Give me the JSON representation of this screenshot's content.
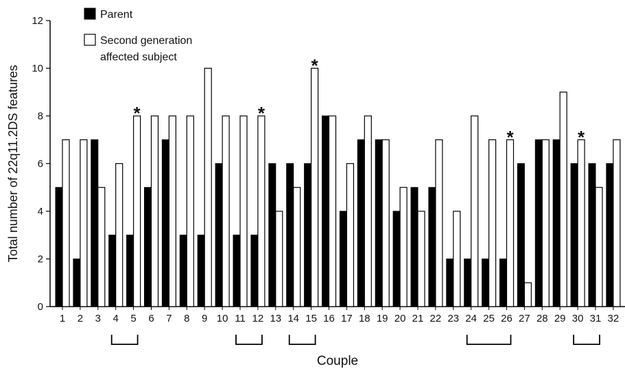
{
  "chart_data": {
    "type": "bar",
    "ylabel": "Total number of 22q11.2DS features",
    "xlabel": "Couple",
    "ylim": [
      0,
      12
    ],
    "yticks": [
      0,
      2,
      4,
      6,
      8,
      10,
      12
    ],
    "categories": [
      "1",
      "2",
      "3",
      "4",
      "5",
      "6",
      "7",
      "8",
      "9",
      "10",
      "11",
      "12",
      "13",
      "14",
      "15",
      "16",
      "17",
      "18",
      "19",
      "20",
      "21",
      "22",
      "23",
      "24",
      "25",
      "26",
      "27",
      "28",
      "29",
      "30",
      "31",
      "32"
    ],
    "series": [
      {
        "name": "Parent",
        "color": "#000000",
        "values": [
          5,
          2,
          7,
          3,
          3,
          5,
          7,
          3,
          3,
          6,
          3,
          3,
          6,
          6,
          6,
          8,
          4,
          7,
          7,
          4,
          5,
          5,
          2,
          2,
          2,
          2,
          6,
          7,
          7,
          6,
          6,
          6
        ]
      },
      {
        "name": "Second generation affected subject",
        "color": "#ffffff",
        "values": [
          7,
          7,
          5,
          6,
          8,
          8,
          8,
          8,
          10,
          8,
          8,
          8,
          4,
          5,
          10,
          8,
          6,
          8,
          7,
          5,
          4,
          7,
          4,
          8,
          7,
          7,
          1,
          7,
          9,
          7,
          5,
          7
        ]
      }
    ],
    "legend": {
      "placement": "top-left",
      "entries": [
        "Parent",
        "Second generation",
        "affected subject"
      ]
    },
    "asterisks": [
      "5",
      "12",
      "15",
      "26",
      "30"
    ],
    "asterisk_symbol": "*",
    "brackets": [
      [
        "4",
        "5"
      ],
      [
        "11",
        "12"
      ],
      [
        "14",
        "15"
      ],
      [
        "24",
        "26"
      ],
      [
        "30",
        "31"
      ]
    ],
    "grid": false
  }
}
